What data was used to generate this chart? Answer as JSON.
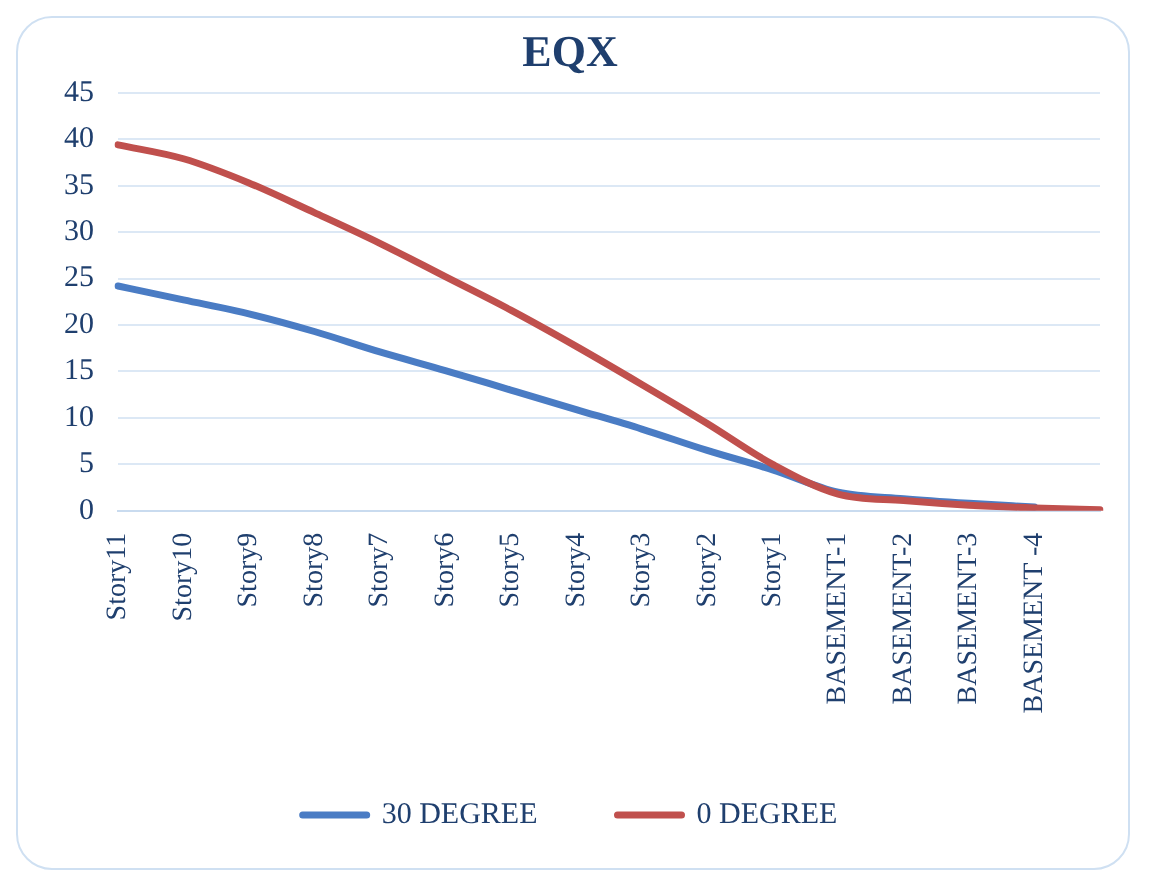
{
  "chart_data": {
    "type": "line",
    "title": "EQX",
    "categories": [
      "Story11",
      "Story10",
      "Story9",
      "Story8",
      "Story7",
      "Story6",
      "Story5",
      "Story4",
      "Story3",
      "Story2",
      "Story1",
      "BASEMENT-1",
      "BASEMENT-2",
      "BASEMENT-3",
      "BASEMENT -4",
      null
    ],
    "series": [
      {
        "name": "30 DEGREE",
        "color": "#4a7cc4",
        "values": [
          24.2,
          22.7,
          21.2,
          19.3,
          17.1,
          15.1,
          13.0,
          10.9,
          8.8,
          6.5,
          4.4,
          2.0,
          1.3,
          0.8,
          0.4,
          null
        ]
      },
      {
        "name": "0 DEGREE",
        "color": "#c0504d",
        "values": [
          39.4,
          37.9,
          35.3,
          32.1,
          28.8,
          25.2,
          21.6,
          17.7,
          13.6,
          9.4,
          5.0,
          1.8,
          1.1,
          0.6,
          0.3,
          0.1
        ]
      }
    ],
    "ylim": [
      0,
      45
    ],
    "yticks": [
      0,
      5,
      10,
      15,
      20,
      25,
      30,
      35,
      40,
      45
    ],
    "grid": "y",
    "legend": "bottom",
    "marker": "none",
    "line_style": "solid"
  }
}
